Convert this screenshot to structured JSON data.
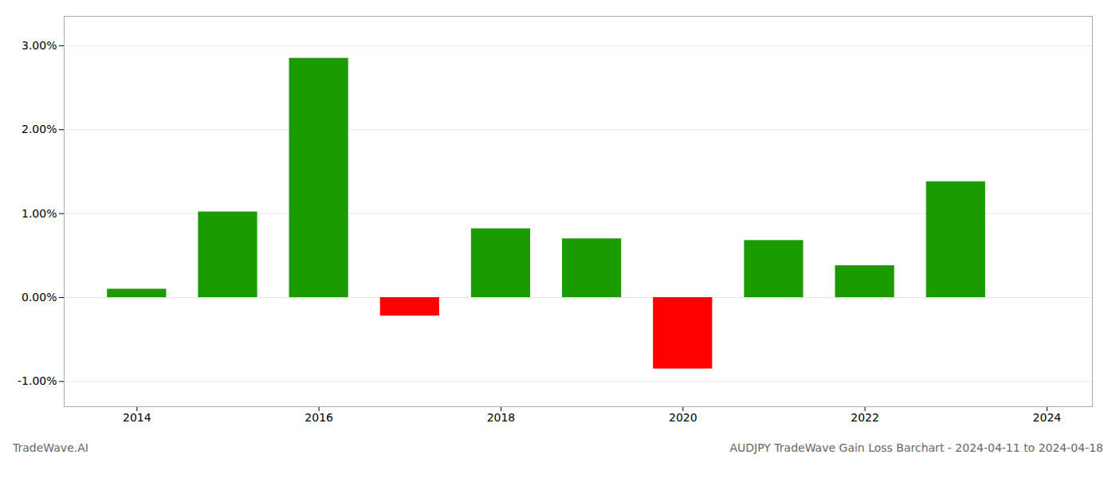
{
  "chart_data": {
    "type": "bar",
    "title": "AUDJPY TradeWave Gain Loss Barchart - 2024-04-11 to 2024-04-18",
    "annotations": [
      "TradeWave.AI"
    ],
    "x": [
      2014,
      2015,
      2016,
      2017,
      2018,
      2019,
      2020,
      2021,
      2022,
      2023
    ],
    "values": [
      0.001,
      0.0102,
      0.0285,
      -0.0022,
      0.0082,
      0.007,
      -0.0085,
      0.0068,
      0.0038,
      0.0138
    ],
    "colors": [
      "#1a9c00",
      "#1a9c00",
      "#1a9c00",
      "#ff0000",
      "#1a9c00",
      "#1a9c00",
      "#ff0000",
      "#1a9c00",
      "#1a9c00",
      "#1a9c00"
    ],
    "xlim": [
      2013.2,
      2024.5
    ],
    "xticks": [
      2014,
      2016,
      2018,
      2020,
      2022,
      2024
    ],
    "ylim": [
      -0.013,
      0.0335
    ],
    "yticks": [
      {
        "value": -0.01,
        "label": "-1.00%"
      },
      {
        "value": 0.0,
        "label": "0.00%"
      },
      {
        "value": 0.01,
        "label": "1.00%"
      },
      {
        "value": 0.02,
        "label": "2.00%"
      },
      {
        "value": 0.03,
        "label": "3.00%"
      }
    ],
    "grid": true
  }
}
